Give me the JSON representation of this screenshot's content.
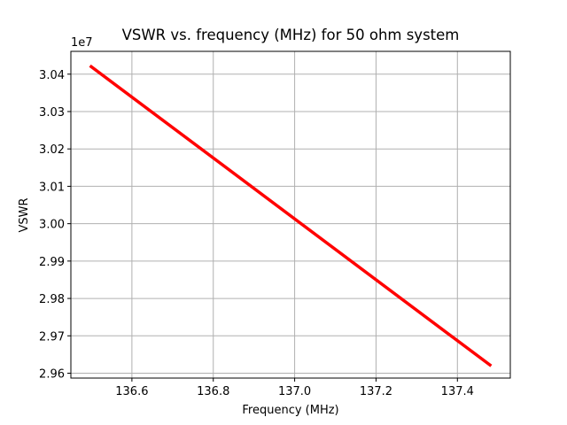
{
  "chart_data": {
    "type": "line",
    "title": "VSWR vs. frequency (MHz) for 50 ohm system",
    "xlabel": "Frequency (MHz)",
    "ylabel": "VSWR",
    "y_offset_label": "1e7",
    "xlim": [
      136.45,
      137.53
    ],
    "ylim": [
      2.9587,
      3.0461
    ],
    "x_ticks": [
      136.6,
      136.8,
      137.0,
      137.2,
      137.4
    ],
    "x_tick_labels": [
      "136.6",
      "136.8",
      "137.0",
      "137.2",
      "137.4"
    ],
    "y_ticks": [
      2.96,
      2.97,
      2.98,
      2.99,
      3.0,
      3.01,
      3.02,
      3.03,
      3.04
    ],
    "y_tick_labels": [
      "2.96",
      "2.97",
      "2.98",
      "2.99",
      "3.00",
      "3.01",
      "3.02",
      "3.03",
      "3.04"
    ],
    "y_scale_factor": 10000000,
    "grid": true,
    "series": [
      {
        "color": "#ff0000",
        "x": [
          136.5,
          137.48
        ],
        "y": [
          3.042,
          2.9622
        ]
      }
    ]
  }
}
